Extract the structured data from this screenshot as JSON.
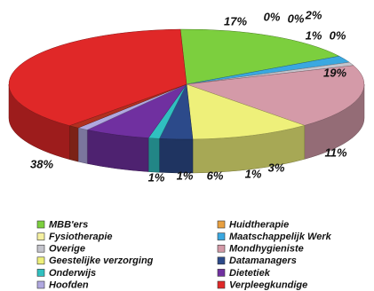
{
  "chart_data": {
    "type": "pie3d",
    "categories": [
      "MBB'ers",
      "Huidtherapie",
      "Fysiotherapie",
      "Maatschappelijk Werk",
      "Overige",
      null,
      "Mondhygieniste",
      "Geestelijke verzorging",
      "Datamanagers",
      "Onderwijs",
      "Dietetiek",
      "Hoofden",
      null,
      "Verpleegkundige"
    ],
    "values": [
      17,
      0,
      0,
      2,
      1,
      0,
      19,
      11,
      3,
      1,
      6,
      1,
      1,
      38
    ],
    "value_labels": [
      "17%",
      "0%",
      "0%",
      "2%",
      "1%",
      "0%",
      "19%",
      "11%",
      "3%",
      "1%",
      "6%",
      "1%",
      "1%",
      "38%"
    ],
    "colors": [
      "#7ccf3e",
      "#e8a040",
      "#f5f0a0",
      "#3aa8e0",
      "#c4c4cc",
      "#b08070",
      "#d49aa8",
      "#eef07a",
      "#2c4a8a",
      "#30c0c0",
      "#7030a0",
      "#b0a8e0",
      "#b03020",
      "#e02828"
    ]
  }
}
